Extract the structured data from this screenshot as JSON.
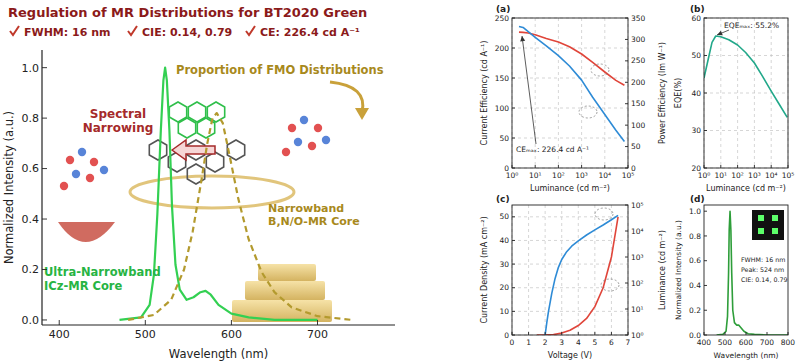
{
  "chart_data": [
    {
      "type": "line",
      "title": "Regulation of MR Distributions for BT2020 Green",
      "annotations": [
        "FWHM: 16 nm",
        "CIE: 0.14, 0.79",
        "CE: 226.4 cd A⁻¹",
        "Spectral Narrowing",
        "Proportion of FMO Distributions"
      ],
      "x_label": "Wavelength (nm)",
      "y_label": "Normalized Intensity (a.u.)",
      "xlim": [
        380,
        790
      ],
      "ylim": [
        -0.02,
        1.07
      ],
      "xticks": [
        400,
        500,
        600,
        700
      ],
      "yticks": [
        {
          "value": 0,
          "label": "0.0"
        },
        0.2,
        0.4,
        0.6,
        0.8,
        {
          "value": 1,
          "label": "1.0"
        }
      ],
      "grid": false,
      "series": [
        {
          "name": "Ultra-Narrowband ICz-MR Core",
          "color": "#33d052",
          "line_style": "solid",
          "x": [
            470,
            495,
            505,
            510,
            514,
            518,
            521,
            523,
            525,
            528,
            531,
            535,
            540,
            548,
            556,
            564,
            570,
            576,
            585,
            600,
            620,
            650,
            700
          ],
          "values": [
            0,
            0.01,
            0.06,
            0.18,
            0.42,
            0.75,
            0.95,
            1.0,
            0.95,
            0.75,
            0.45,
            0.22,
            0.12,
            0.08,
            0.09,
            0.11,
            0.115,
            0.1,
            0.06,
            0.025,
            0.01,
            0,
            0
          ]
        },
        {
          "name": "Narrowband B,N/O-MR Core",
          "color": "#b39a2e",
          "line_style": "dashed",
          "x": [
            480,
            510,
            530,
            545,
            555,
            565,
            572,
            578,
            583,
            590,
            598,
            608,
            620,
            635,
            650,
            670,
            700,
            740
          ],
          "values": [
            0,
            0.02,
            0.08,
            0.2,
            0.35,
            0.55,
            0.7,
            0.8,
            0.82,
            0.78,
            0.65,
            0.48,
            0.32,
            0.19,
            0.11,
            0.05,
            0.015,
            0
          ]
        }
      ]
    },
    {
      "type": "line",
      "title": "(a)",
      "annotations": [
        "CEₘₐₓ: 226.4 cd A⁻¹"
      ],
      "x_label": "Luminance (cd m⁻²)",
      "y_label": "Current Efficiency (cd A⁻¹)",
      "y2_label": "Power Efficiency (lm W⁻¹)",
      "log": "x",
      "grid": true,
      "xlim": [
        1,
        100000
      ],
      "xticks": [
        {
          "value": 1,
          "label": "10⁰"
        },
        {
          "value": 10,
          "label": "10¹"
        },
        {
          "value": 100,
          "label": "10²"
        },
        {
          "value": 1000,
          "label": "10³"
        },
        {
          "value": 10000,
          "label": "10⁴"
        },
        {
          "value": 100000,
          "label": "10⁵"
        }
      ],
      "ylim": [
        0,
        250
      ],
      "yticks": [
        0,
        50,
        100,
        150,
        200,
        250
      ],
      "y2lim": [
        0,
        350
      ],
      "y2ticks": [
        0,
        50,
        100,
        150,
        200,
        250,
        300,
        350
      ],
      "series": [
        {
          "color": "#e0453a",
          "x": [
            2,
            3,
            5,
            10,
            30,
            100,
            300,
            1000,
            3000,
            10000,
            30000,
            70000
          ],
          "values": [
            226.4,
            226,
            225,
            222,
            216,
            210,
            202,
            190,
            176,
            160,
            146,
            138
          ]
        },
        {
          "color": "#2e8bd6",
          "axis": "y2",
          "x": [
            2,
            3,
            5,
            10,
            30,
            100,
            300,
            1000,
            3000,
            10000,
            30000,
            70000
          ],
          "values": [
            330,
            328,
            318,
            305,
            285,
            262,
            238,
            205,
            165,
            125,
            88,
            62
          ]
        }
      ]
    },
    {
      "type": "line",
      "title": "(b)",
      "annotations": [
        "EQEₘₐₓ: 55.2%"
      ],
      "x_label": "Luminance (cd m⁻²)",
      "y_label": "EQE(%)",
      "log": "x",
      "grid": true,
      "xlim": [
        1,
        100000
      ],
      "xticks": [
        {
          "value": 1,
          "label": "10⁰"
        },
        {
          "value": 10,
          "label": "10¹"
        },
        {
          "value": 100,
          "label": "10²"
        },
        {
          "value": 1000,
          "label": "10³"
        },
        {
          "value": 10000,
          "label": "10⁴"
        },
        {
          "value": 100000,
          "label": "10⁵"
        }
      ],
      "ylim": [
        20,
        60
      ],
      "yticks": [
        20,
        30,
        40,
        50,
        60
      ],
      "series": [
        {
          "color": "#22a88a",
          "x": [
            1,
            2,
            3,
            5,
            10,
            30,
            100,
            300,
            1000,
            3000,
            10000,
            30000,
            90000
          ],
          "values": [
            44,
            50,
            53.5,
            55.2,
            55,
            54.2,
            52.8,
            50.8,
            48,
            44.5,
            40.5,
            37,
            33.5
          ]
        }
      ]
    },
    {
      "type": "line",
      "title": "(c)",
      "x_label": "Voltage (V)",
      "y_label": "Current Density (mA cm⁻²)",
      "y2_label": "Luminance (cd m⁻²)",
      "log": "y2",
      "grid": true,
      "xlim": [
        0,
        7
      ],
      "xticks": [
        0,
        1,
        2,
        3,
        4,
        5,
        6,
        7
      ],
      "ylim": [
        0,
        55
      ],
      "yticks": [
        0,
        10,
        20,
        30,
        40,
        50
      ],
      "y2lim": [
        1,
        100000
      ],
      "y2ticks": [
        {
          "value": 1,
          "label": "10⁰"
        },
        {
          "value": 10,
          "label": "10¹"
        },
        {
          "value": 100,
          "label": "10²"
        },
        {
          "value": 1000,
          "label": "10³"
        },
        {
          "value": 10000,
          "label": "10⁴"
        },
        {
          "value": 100000,
          "label": "10⁵"
        }
      ],
      "series": [
        {
          "color": "#e0453a",
          "x": [
            1.5,
            2,
            2.5,
            3,
            3.5,
            4,
            4.5,
            5,
            5.5,
            6,
            6.4
          ],
          "values": [
            0,
            0.05,
            0.2,
            0.8,
            2,
            4,
            7,
            12,
            20,
            33,
            50
          ]
        },
        {
          "color": "#2e8bd6",
          "axis": "y2",
          "x": [
            2,
            2.1,
            2.2,
            2.4,
            2.6,
            2.8,
            3,
            3.3,
            3.6,
            4,
            4.5,
            5,
            5.5,
            6,
            6.4
          ],
          "values": [
            1,
            3,
            8,
            40,
            150,
            400,
            800,
            1600,
            2600,
            4200,
            7000,
            11000,
            17000,
            27000,
            40000
          ]
        }
      ]
    },
    {
      "type": "line",
      "title": "(d)",
      "annotations": [
        "FWHM: 16 nm",
        "Peak: 524 nm",
        "CIE: 0.14, 0.79"
      ],
      "x_label": "Wavelength (nm)",
      "y_label": "Normalized Intensity (a.u.)",
      "grid": false,
      "xlim": [
        400,
        800
      ],
      "xticks": [
        400,
        500,
        600,
        700,
        800
      ],
      "ylim": [
        0,
        1.05
      ],
      "yticks": [
        {
          "value": 0,
          "label": "0.0"
        },
        0.2,
        0.4,
        0.6,
        0.8,
        {
          "value": 1,
          "label": "1.0"
        }
      ],
      "series": [
        {
          "color": "#2e9e3a",
          "x": [
            460,
            490,
            505,
            512,
            517,
            520,
            524,
            528,
            532,
            537,
            545,
            555,
            565,
            575,
            590,
            610,
            640,
            700,
            800
          ],
          "values": [
            0,
            0.005,
            0.03,
            0.15,
            0.5,
            0.85,
            1.0,
            0.85,
            0.5,
            0.2,
            0.1,
            0.08,
            0.08,
            0.06,
            0.03,
            0.01,
            0.005,
            0,
            0
          ]
        }
      ]
    }
  ]
}
